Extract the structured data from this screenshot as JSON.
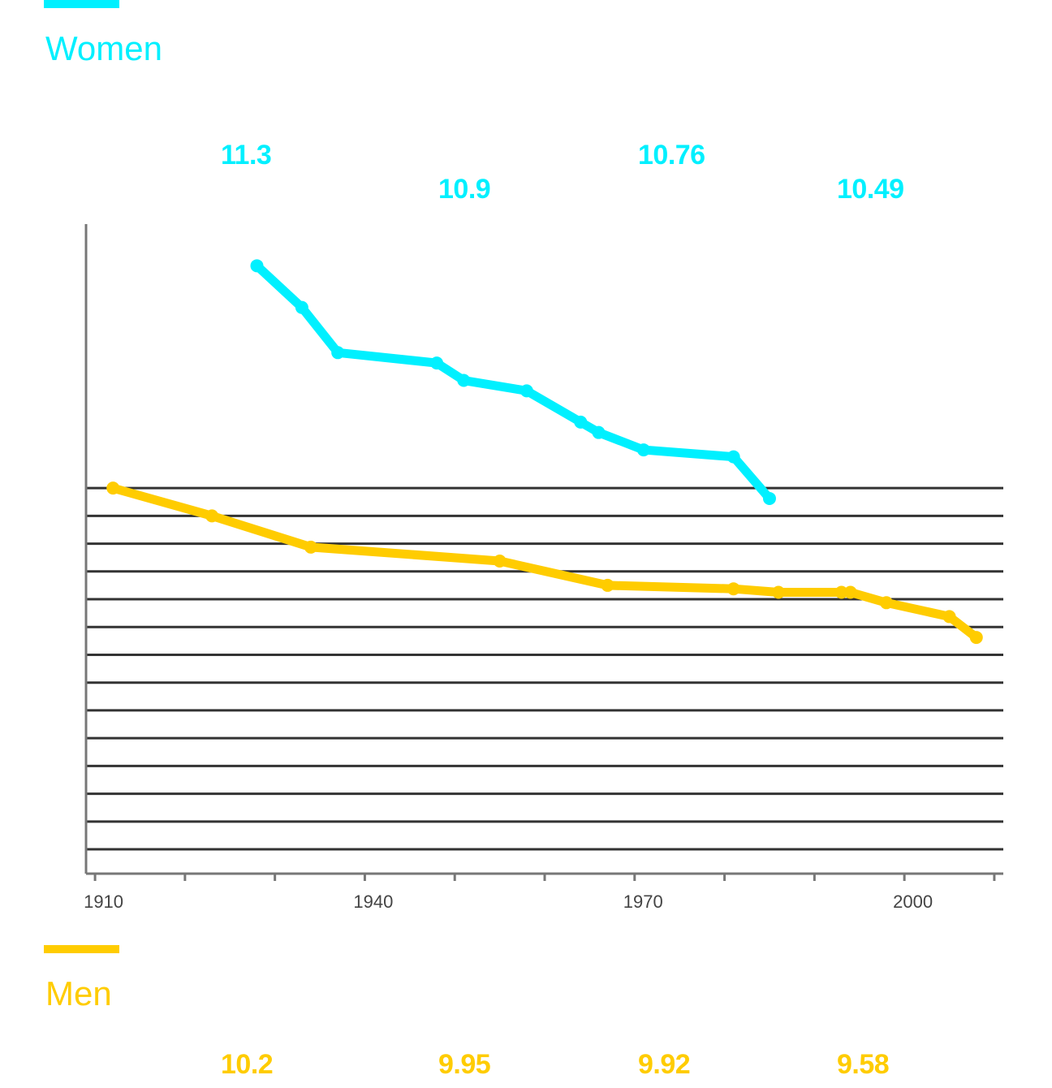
{
  "legend": {
    "women": {
      "label": "Women",
      "color": "#00F0FF"
    },
    "men": {
      "label": "Men",
      "color": "#FFCC00"
    }
  },
  "annotations": {
    "women": [
      "11.3",
      "10.9",
      "10.76",
      "10.49"
    ],
    "men": [
      "10.2",
      "9.95",
      "9.92",
      "9.58"
    ]
  },
  "chart_data": {
    "type": "line",
    "x_tick_labels": [
      "1910",
      "1940",
      "1970",
      "2000"
    ],
    "x_ticks": [
      1910,
      1920,
      1930,
      1940,
      1950,
      1960,
      1970,
      1980,
      1990,
      2000,
      2010
    ],
    "xlim": [
      1909,
      2011
    ],
    "ylim": [
      9.55,
      11.42
    ],
    "y_gridlines": [
      9.62,
      9.7,
      9.78,
      9.86,
      9.94,
      10.02,
      10.1,
      10.18,
      10.26,
      10.34,
      10.42,
      10.5,
      10.58,
      10.66
    ],
    "grid": true,
    "series": [
      {
        "name": "Women",
        "color": "#00F0FF",
        "points": [
          [
            1928,
            11.3
          ],
          [
            1933,
            11.18
          ],
          [
            1937,
            11.05
          ],
          [
            1948,
            11.02
          ],
          [
            1951,
            10.97
          ],
          [
            1958,
            10.94
          ],
          [
            1964,
            10.85
          ],
          [
            1966,
            10.82
          ],
          [
            1971,
            10.77
          ],
          [
            1981,
            10.75
          ],
          [
            1985,
            10.63
          ]
        ]
      },
      {
        "name": "Men",
        "color": "#FFCC00",
        "points": [
          [
            1912,
            10.66
          ],
          [
            1923,
            10.58
          ],
          [
            1934,
            10.49
          ],
          [
            1955,
            10.45
          ],
          [
            1967,
            10.38
          ],
          [
            1981,
            10.37
          ],
          [
            1986,
            10.36
          ],
          [
            1993,
            10.36
          ],
          [
            1994,
            10.36
          ],
          [
            1998,
            10.33
          ],
          [
            2005,
            10.29
          ],
          [
            2008,
            10.23
          ]
        ]
      }
    ]
  }
}
